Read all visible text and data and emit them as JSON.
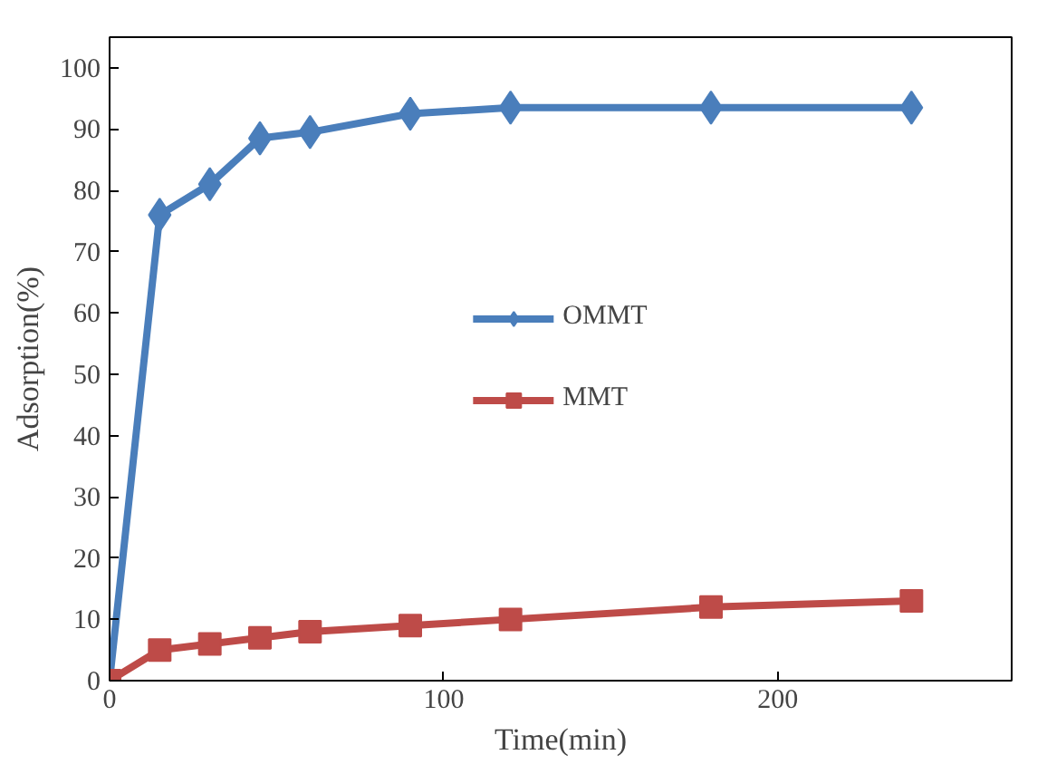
{
  "chart_data": {
    "type": "line",
    "xlabel": "Time(min)",
    "ylabel": "Adsorption(%)",
    "xlim": [
      0,
      270
    ],
    "xticks": [
      0,
      100,
      200
    ],
    "ylim": [
      0,
      105
    ],
    "yticks": [
      0,
      10,
      20,
      30,
      40,
      50,
      60,
      70,
      80,
      90,
      100
    ],
    "grid": false,
    "legend": "center",
    "line_style": "solid",
    "series": [
      {
        "name": "OMMT",
        "color": "#4a7ebb",
        "marker": "diamond",
        "x": [
          0,
          15,
          30,
          45,
          60,
          90,
          120,
          180,
          240
        ],
        "values": [
          0,
          76,
          81,
          88.5,
          89.5,
          92.5,
          93.5,
          93.5,
          93.5
        ]
      },
      {
        "name": "MMT",
        "color": "#be4b48",
        "marker": "square",
        "x": [
          0,
          15,
          30,
          45,
          60,
          90,
          120,
          180,
          240
        ],
        "values": [
          0,
          5,
          6,
          7,
          8,
          9,
          10,
          12,
          13
        ]
      }
    ]
  }
}
